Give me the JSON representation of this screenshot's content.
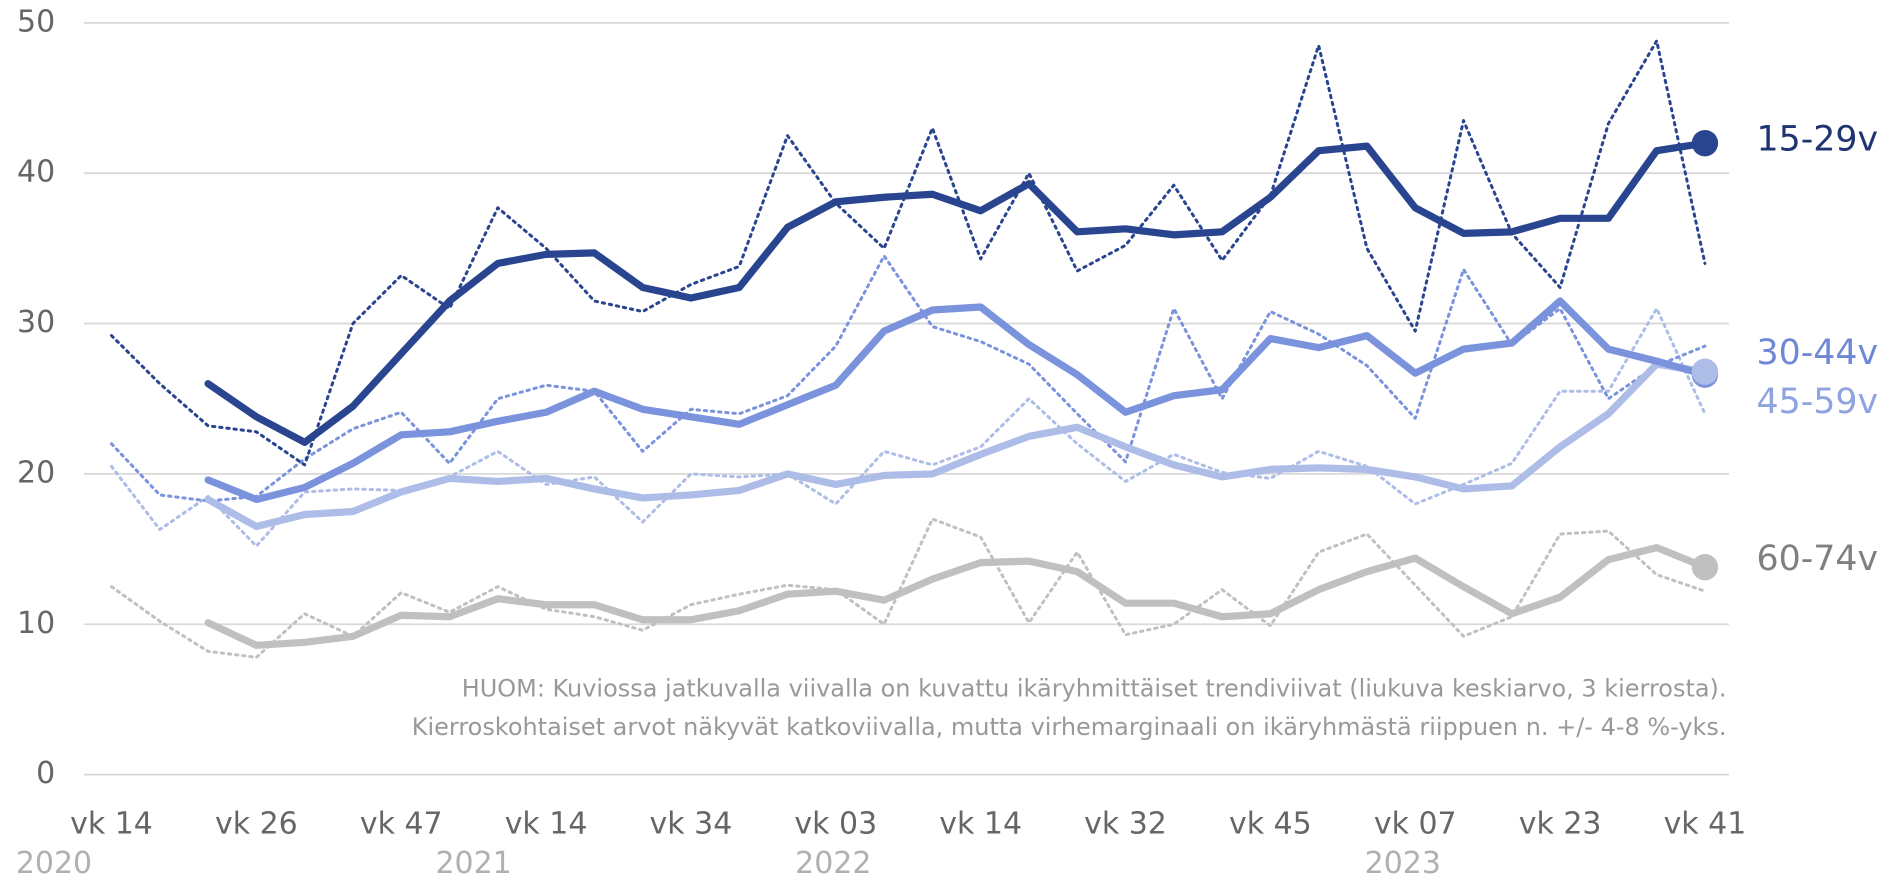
{
  "chart_data": {
    "type": "line",
    "categories": [
      "vk 14",
      null,
      null,
      "vk 26",
      null,
      null,
      "vk 47",
      null,
      null,
      "vk 14",
      null,
      null,
      "vk 34",
      null,
      null,
      "vk 03",
      null,
      null,
      "vk 14",
      null,
      null,
      "vk 32",
      null,
      null,
      "vk 45",
      null,
      null,
      "vk 07",
      null,
      null,
      "vk 23",
      null,
      null,
      "vk 41"
    ],
    "years": [
      "2020",
      "2021",
      "2022",
      "2023"
    ],
    "ylim": [
      0,
      50
    ],
    "yticks": [
      0,
      10,
      20,
      30,
      40,
      50
    ],
    "grid": true,
    "note": [
      "HUOM: Kuviossa jatkuvalla viivalla on kuvattu ikäryhmittäiset trendiviivat (liukuva keskiarvo, 3 kierrosta).",
      "Kierroskohtaiset arvot näkyvät katkoviivalla, mutta virhemarginaali on ikäryhmästä riippuen n. +/- 4-8 %-yks."
    ],
    "series": [
      {
        "name": "15-29v",
        "color": "#2a4590",
        "label_color": "#1f3470",
        "values": [
          null,
          null,
          26,
          23.8,
          22.1,
          24.5,
          28,
          31.5,
          34,
          34.6,
          34.7,
          32.4,
          31.7,
          32.4,
          36.4,
          38.1,
          38.4,
          38.6,
          37.5,
          39.3,
          36.1,
          36.3,
          35.9,
          36.1,
          38.4,
          41.5,
          41.8,
          37.7,
          36,
          36.1,
          37,
          37,
          41.5,
          42
        ],
        "round_values": [
          29.2,
          26,
          23.2,
          22.8,
          20.6,
          30,
          33.2,
          31,
          37.7,
          35,
          31.5,
          30.8,
          32.6,
          33.8,
          42.5,
          38,
          35,
          43,
          34.3,
          40,
          33.5,
          35.2,
          39.2,
          34.2,
          38.5,
          48.5,
          35,
          29.5,
          43.5,
          36,
          32.4,
          43.3,
          48.8,
          34
        ]
      },
      {
        "name": "30-44v",
        "color": "#7a93dc",
        "label_color": "#6f88d6",
        "values": [
          null,
          null,
          19.6,
          18.3,
          19.1,
          20.7,
          22.6,
          22.8,
          23.5,
          24.1,
          25.5,
          24.3,
          23.8,
          23.3,
          24.6,
          25.9,
          29.5,
          30.9,
          31.1,
          28.6,
          26.6,
          24.1,
          25.2,
          25.6,
          29,
          28.4,
          29.2,
          26.7,
          28.3,
          28.7,
          31.5,
          28.3,
          27.5,
          26.6
        ],
        "round_values": [
          22,
          18.6,
          18.2,
          18.5,
          21,
          23,
          24.1,
          20.7,
          25,
          25.9,
          25.5,
          21.5,
          24.3,
          24,
          25.2,
          28.5,
          34.5,
          29.8,
          28.8,
          27.3,
          24,
          20.8,
          31,
          25,
          30.8,
          29.3,
          27.2,
          23.7,
          33.6,
          28.6,
          31,
          25,
          27.2,
          28.5
        ]
      },
      {
        "name": "45-59v",
        "color": "#aebde8",
        "label_color": "#8ea3e0",
        "values": [
          null,
          null,
          18.3,
          16.5,
          17.3,
          17.5,
          18.8,
          19.7,
          19.5,
          19.7,
          19,
          18.4,
          18.6,
          18.9,
          20,
          19.3,
          19.9,
          20,
          21.3,
          22.5,
          23.1,
          21.8,
          20.6,
          19.8,
          20.3,
          20.4,
          20.3,
          19.8,
          19,
          19.2,
          21.8,
          24,
          27.3,
          26.8
        ],
        "round_values": [
          20.5,
          16.3,
          18.5,
          15.2,
          18.8,
          19,
          18.9,
          19.8,
          21.5,
          19.3,
          19.8,
          16.8,
          20,
          19.8,
          20,
          18,
          21.5,
          20.6,
          21.8,
          25,
          22,
          19.5,
          21.3,
          20.1,
          19.7,
          21.5,
          20.5,
          18,
          19.3,
          20.7,
          25.5,
          25.5,
          31,
          24
        ]
      },
      {
        "name": "60-74v",
        "color": "#c0c0c0",
        "label_color": "#808080",
        "values": [
          null,
          null,
          10.1,
          8.6,
          8.8,
          9.2,
          10.6,
          10.5,
          11.7,
          11.3,
          11.3,
          10.3,
          10.3,
          10.9,
          12,
          12.2,
          11.6,
          13,
          14.1,
          14.2,
          13.5,
          11.4,
          11.4,
          10.5,
          10.7,
          12.3,
          13.5,
          14.4,
          12.5,
          10.7,
          11.8,
          14.3,
          15.1,
          13.8
        ],
        "round_values": [
          12.5,
          10.2,
          8.2,
          7.8,
          10.7,
          9.2,
          12.1,
          10.8,
          12.5,
          11,
          10.5,
          9.6,
          11.3,
          12,
          12.6,
          12.3,
          10,
          17,
          15.8,
          10.1,
          14.8,
          9.3,
          10,
          12.3,
          9.9,
          14.8,
          16,
          12.6,
          9.2,
          10.5,
          16,
          16.2,
          13.3,
          12.2
        ]
      }
    ]
  }
}
